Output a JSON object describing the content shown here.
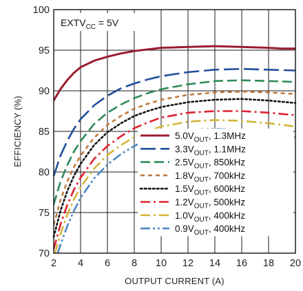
{
  "chart_data": {
    "type": "line",
    "annotation": {
      "main": "EXTV",
      "sub": "CC",
      "tail": " = 5V"
    },
    "xlabel": "OUTPUT CURRENT (A)",
    "ylabel": "EFFICIENCY (%)",
    "xlim": [
      2,
      20
    ],
    "ylim": [
      70,
      100
    ],
    "xticks": [
      2,
      4,
      6,
      8,
      10,
      12,
      14,
      16,
      18,
      20
    ],
    "yticks": [
      70,
      75,
      80,
      85,
      90,
      95,
      100
    ],
    "grid": true,
    "legend_position": "bottom-right",
    "series": [
      {
        "name": "5.0VOUT, 1.3MHz",
        "label_main": "5.0V",
        "label_sub": "OUT",
        "label_tail": ", 1.3MHz",
        "color": "#9b1b30",
        "dash": "solid",
        "x": [
          2,
          2.5,
          3,
          3.5,
          4,
          5,
          6,
          7,
          8,
          9,
          10,
          12,
          14,
          16,
          18,
          19,
          20
        ],
        "y": [
          88.8,
          90.2,
          91.3,
          92.2,
          92.9,
          93.7,
          94.2,
          94.6,
          94.9,
          95.1,
          95.3,
          95.4,
          95.5,
          95.4,
          95.3,
          95.2,
          95.2
        ]
      },
      {
        "name": "3.3VOUT, 1.1MHz",
        "label_main": "3.3V",
        "label_sub": "OUT",
        "label_tail": ", 1.1MHz",
        "color": "#1f4e9c",
        "dash": "longdash",
        "x": [
          2,
          2.5,
          3,
          3.5,
          4,
          5,
          6,
          7,
          8,
          9,
          10,
          12,
          14,
          16,
          18,
          20
        ],
        "y": [
          79.5,
          82.0,
          83.8,
          85.3,
          86.5,
          88.2,
          89.4,
          90.3,
          90.9,
          91.4,
          91.8,
          92.3,
          92.6,
          92.7,
          92.6,
          92.5
        ]
      },
      {
        "name": "2.5VOUT, 850kHz",
        "label_main": "2.5V",
        "label_sub": "OUT",
        "label_tail": ", 850kHz",
        "color": "#2e8b57",
        "dash": "dash",
        "x": [
          2,
          2.5,
          3,
          3.5,
          4,
          5,
          6,
          7,
          8,
          9,
          10,
          12,
          14,
          16,
          18,
          20
        ],
        "y": [
          76.0,
          78.8,
          80.8,
          82.5,
          83.8,
          85.9,
          87.3,
          88.3,
          89.1,
          89.7,
          90.2,
          90.8,
          91.2,
          91.3,
          91.2,
          91.1
        ]
      },
      {
        "name": "1.8VOUT, 700kHz",
        "label_main": "1.8V",
        "label_sub": "OUT",
        "label_tail": ", 700kHz",
        "color": "#c07a3a",
        "dash": "shortdash",
        "x": [
          2,
          2.5,
          3,
          3.5,
          4,
          5,
          6,
          7,
          8,
          9,
          10,
          12,
          14,
          16,
          18,
          20
        ],
        "y": [
          73.5,
          76.5,
          78.8,
          80.6,
          82.0,
          84.2,
          85.8,
          86.9,
          87.8,
          88.4,
          88.9,
          89.5,
          89.8,
          89.9,
          89.8,
          89.6
        ]
      },
      {
        "name": "1.5VOUT, 600kHz",
        "label_main": "1.5V",
        "label_sub": "OUT",
        "label_tail": ", 600kHz",
        "color": "#111111",
        "dash": "dot",
        "x": [
          2,
          2.5,
          3,
          3.5,
          4,
          5,
          6,
          7,
          8,
          9,
          10,
          12,
          14,
          16,
          18,
          20
        ],
        "y": [
          72.0,
          75.2,
          77.6,
          79.5,
          81.0,
          83.3,
          84.9,
          86.0,
          86.9,
          87.5,
          88.0,
          88.6,
          88.9,
          89.0,
          88.8,
          88.5
        ]
      },
      {
        "name": "1.2VOUT, 500kHz",
        "label_main": "1.2V",
        "label_sub": "OUT",
        "label_tail": ", 500kHz",
        "color": "#e0202e",
        "dash": "dashdot",
        "x": [
          2,
          2.5,
          3,
          3.5,
          4,
          5,
          6,
          7,
          8,
          9,
          10,
          12,
          14,
          16,
          18,
          20
        ],
        "y": [
          70.5,
          73.5,
          75.9,
          77.8,
          79.3,
          81.6,
          83.2,
          84.4,
          85.4,
          86.1,
          86.7,
          87.3,
          87.5,
          87.5,
          87.3,
          87.0
        ]
      },
      {
        "name": "1.0VOUT, 400kHz",
        "label_main": "1.0V",
        "label_sub": "OUT",
        "label_tail": ", 400kHz",
        "color": "#d4b53a",
        "dash": "dashdot",
        "x": [
          2.1,
          2.5,
          3,
          3.5,
          4,
          5,
          6,
          7,
          8,
          9,
          10,
          12,
          14,
          16,
          18,
          20
        ],
        "y": [
          70.0,
          72.3,
          74.7,
          76.6,
          78.1,
          80.4,
          82.1,
          83.3,
          84.3,
          85.0,
          85.6,
          86.2,
          86.4,
          86.3,
          86.0,
          85.6
        ]
      },
      {
        "name": "0.9VOUT, 400kHz",
        "label_main": "0.9V",
        "label_sub": "OUT",
        "label_tail": ", 400kHz",
        "color": "#4a86c5",
        "dash": "dashdotdot",
        "x": [
          2.3,
          2.5,
          3,
          3.5,
          4,
          5,
          6,
          7,
          8,
          9,
          10,
          12,
          14,
          16,
          18,
          20
        ],
        "y": [
          70.0,
          71.0,
          73.3,
          75.2,
          76.8,
          79.2,
          80.9,
          82.2,
          83.2,
          84.0,
          84.6,
          85.2,
          85.3,
          85.2,
          84.8,
          84.3
        ]
      }
    ]
  }
}
